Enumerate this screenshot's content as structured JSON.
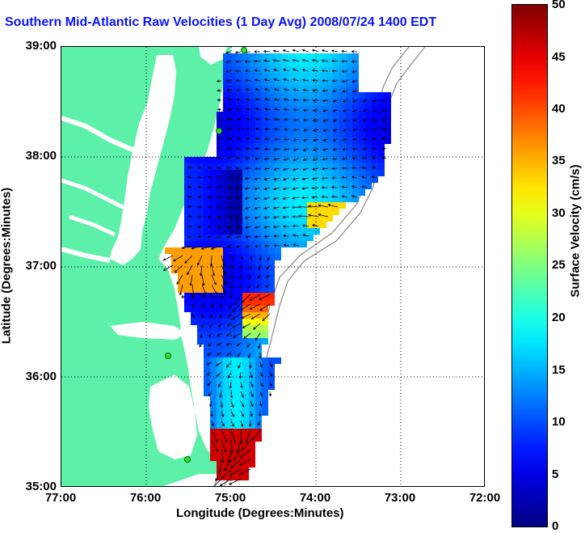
{
  "title": "Southern Mid-Atlantic Raw Velocities (1 Day Avg) 2008/07/24 1400 EDT",
  "map": {
    "xlabel": "Longitude (Degrees:Minutes)",
    "ylabel": "Latitude (Degrees:Minutes)",
    "x_ticks": [
      "77:00",
      "76:00",
      "75:00",
      "74:00",
      "73:00",
      "72:00"
    ],
    "y_ticks": [
      "39:00",
      "38:00",
      "37:00",
      "36:00",
      "35:00"
    ],
    "land_color": "#5cf0a8",
    "grid": "dotted"
  },
  "colorbar": {
    "label": "Surface Velocity (cm/s)",
    "ticks": [
      "50",
      "45",
      "40",
      "35",
      "30",
      "25",
      "20",
      "15",
      "10",
      "5",
      "0"
    ],
    "min": 0,
    "max": 50,
    "colormap": "jet"
  }
}
